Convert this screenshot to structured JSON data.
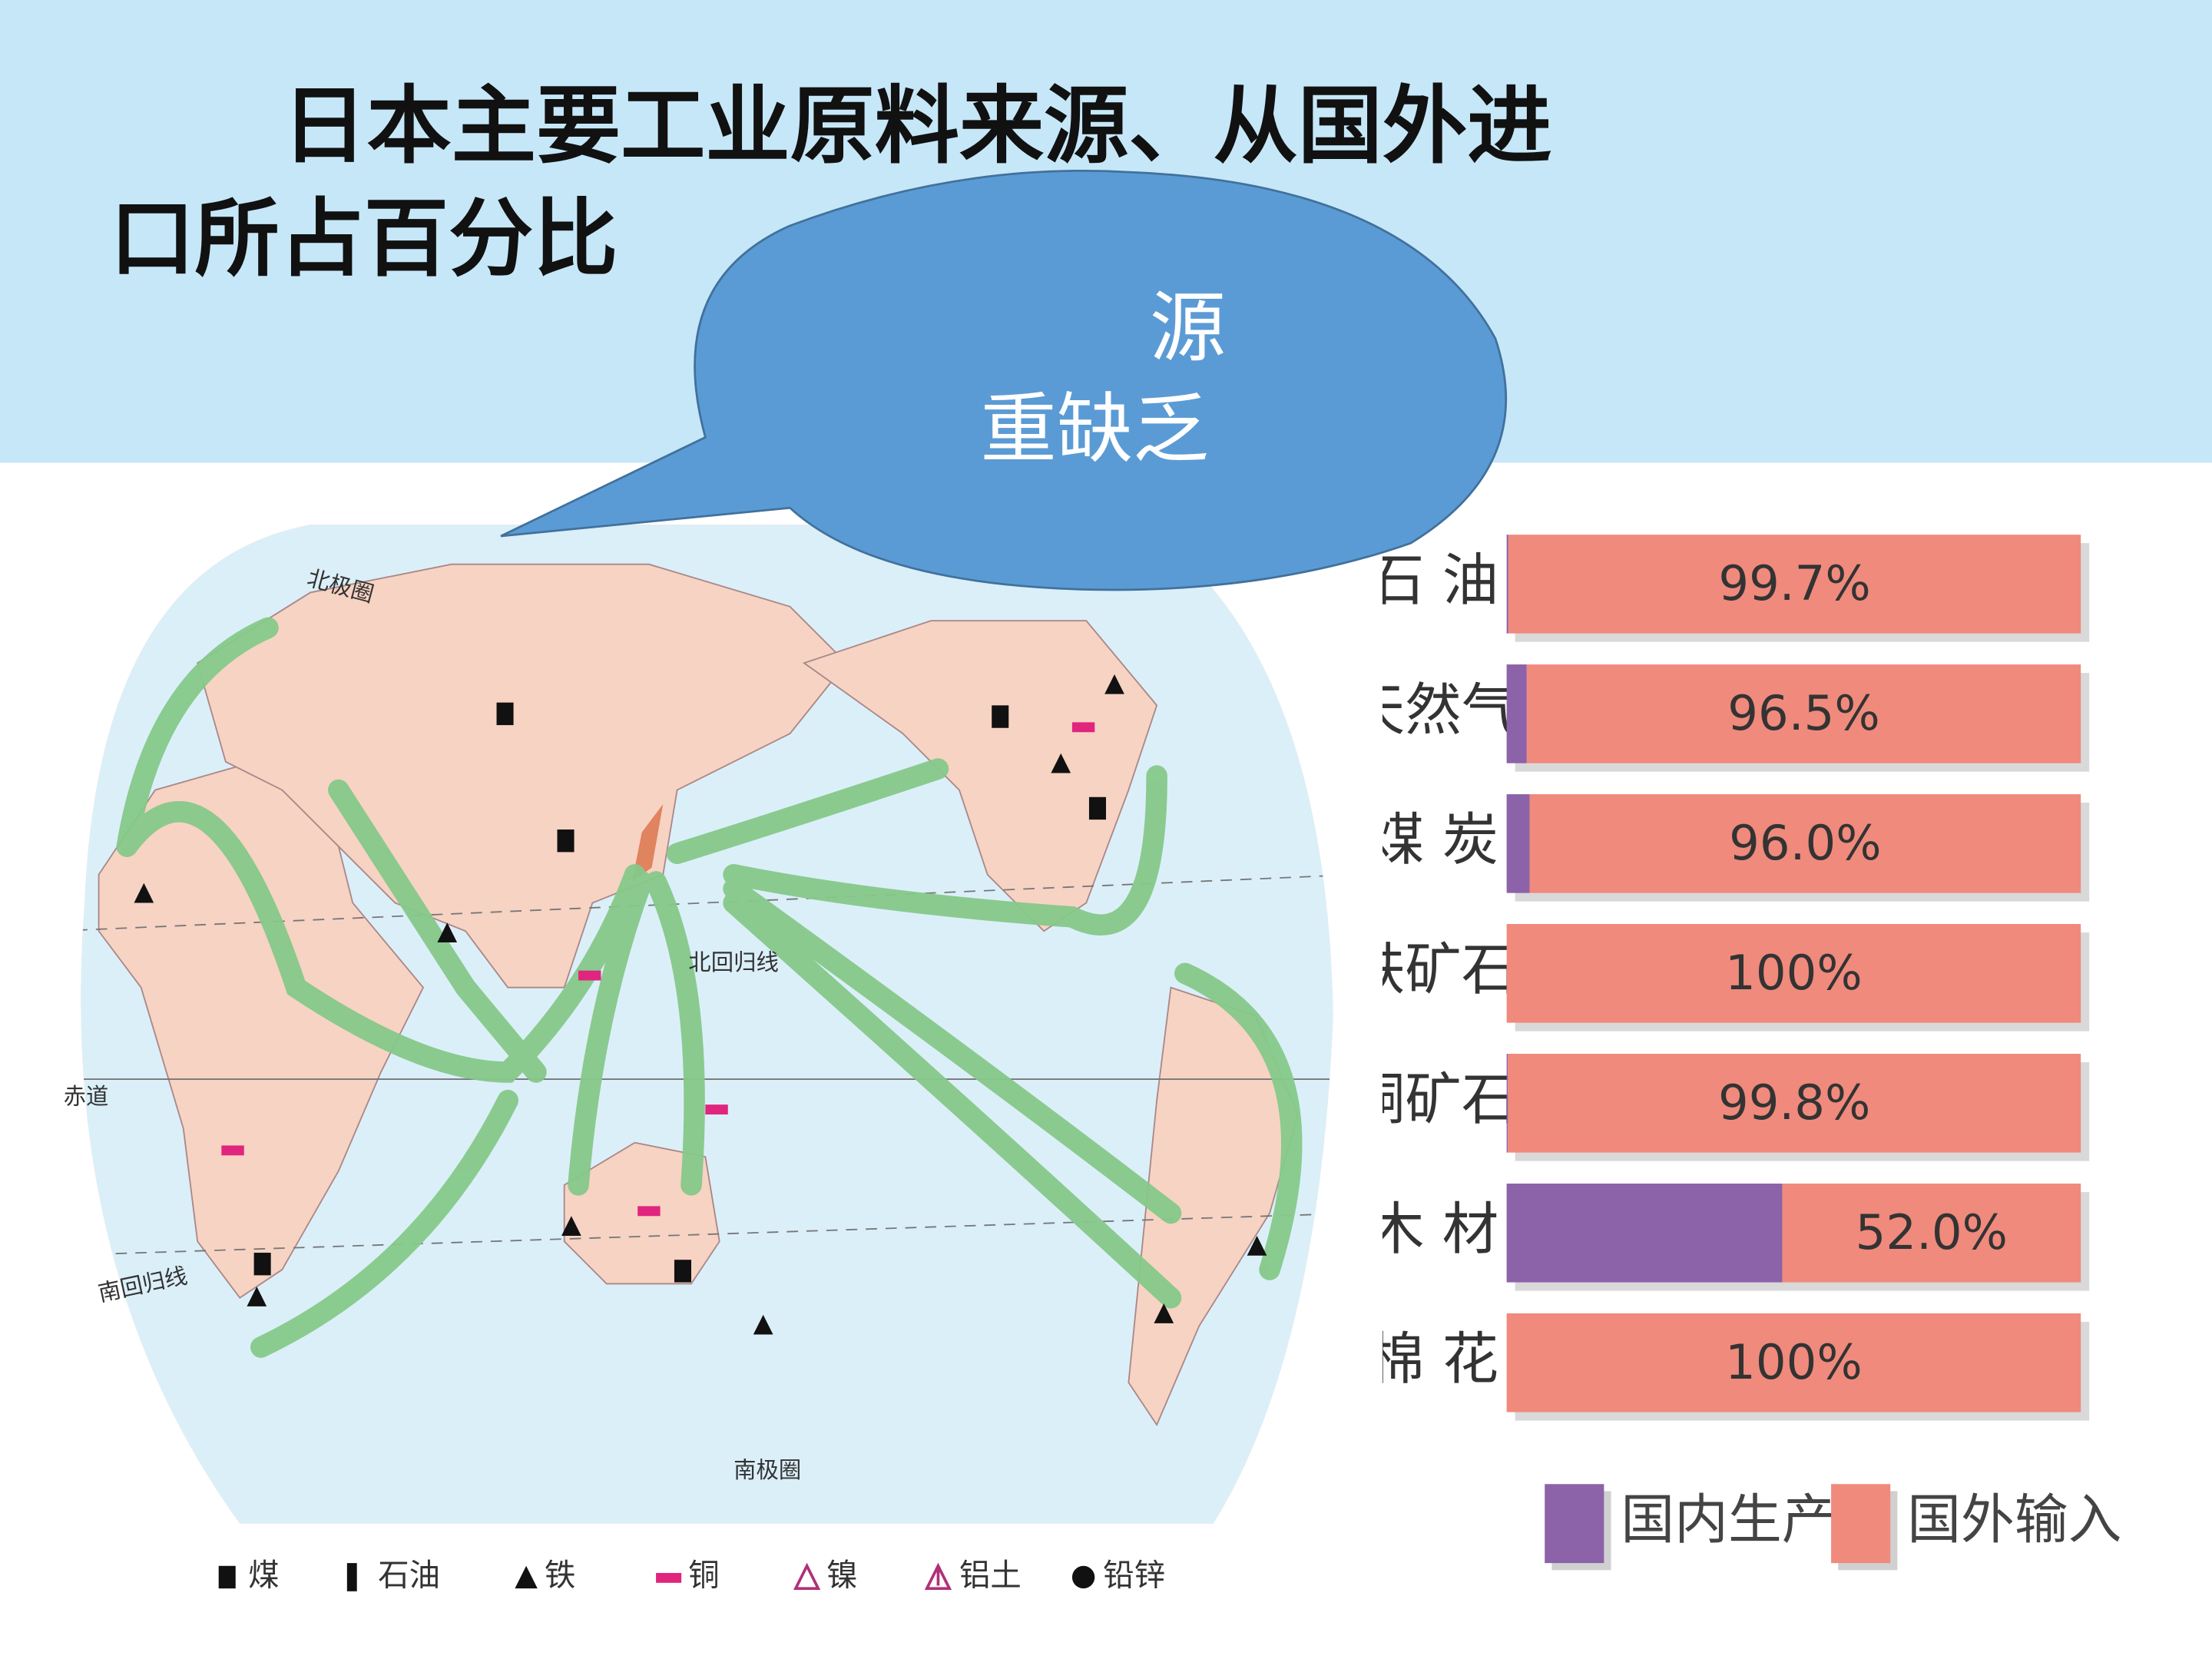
{
  "title": "日本主要工业原料来源、从国外进口所占百分比",
  "bubble": {
    "lines": [
      "源",
      "重缺乏"
    ]
  },
  "map": {
    "labels": [
      "北极圈",
      "北回归线",
      "赤道",
      "南回归线",
      "南极圈"
    ],
    "legend": [
      "煤",
      "石油",
      "铁",
      "铜",
      "镍",
      "铝土",
      "铅锌"
    ]
  },
  "chart_data": {
    "type": "bar",
    "horizontal": true,
    "stacked": true,
    "categories": [
      "石 油",
      "天然气",
      "煤 炭",
      "铁矿石",
      "铜矿石",
      "木 材",
      "棉 花"
    ],
    "xlim": [
      0,
      100
    ],
    "series": [
      {
        "name": "国内生产",
        "color": "#8c62a9",
        "values": [
          0.3,
          3.5,
          4.0,
          0,
          0.2,
          48.0,
          0
        ]
      },
      {
        "name": "国外输入",
        "color": "#f08a7c",
        "values": [
          99.7,
          96.5,
          96.0,
          100,
          99.8,
          52.0,
          100
        ],
        "value_labels": [
          "99.7%",
          "96.5%",
          "96.0%",
          "100%",
          "99.8%",
          "52.0%",
          "100%"
        ]
      }
    ]
  }
}
